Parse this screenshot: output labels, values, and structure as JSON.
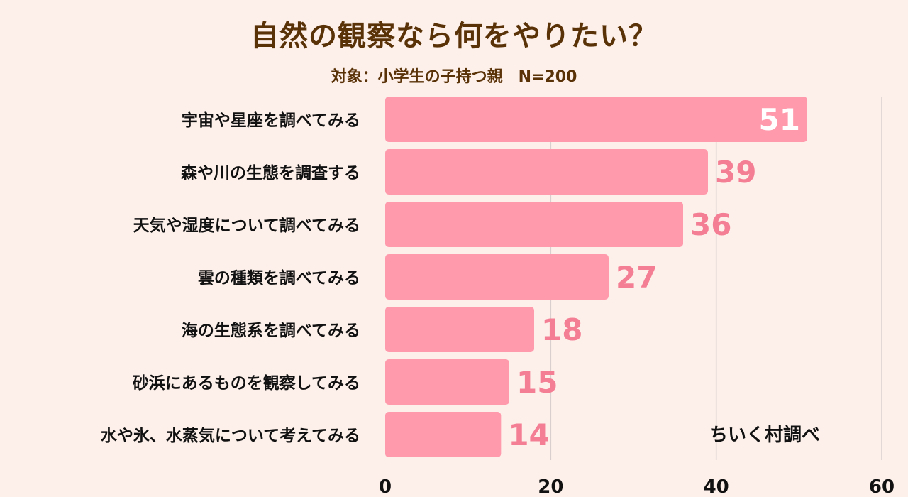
{
  "colors": {
    "background": "#fdf0ea",
    "bar": "#ff9aac",
    "title": "#5a3208",
    "text": "#111111",
    "value_outside": "#f47f95",
    "value_inside": "#ffffff",
    "grid": "#d9cfcf"
  },
  "credit": "ちいく村調べ",
  "chart_data": {
    "type": "bar",
    "orientation": "horizontal",
    "title": "自然の観察なら何をやりたい？",
    "subtitle": "対象：小学生の子持つ親　N=200",
    "categories": [
      "宇宙や星座を調べてみる",
      "森や川の生態を調査する",
      "天気や湿度について調べてみる",
      "雲の種類を調べてみる",
      "海の生態系を調べてみる",
      "砂浜にあるものを観察してみる",
      "水や氷、水蒸気について考えてみる"
    ],
    "values": [
      51,
      39,
      36,
      27,
      18,
      15,
      14
    ],
    "xlim": [
      0,
      60
    ],
    "xticks": [
      0,
      20,
      40,
      60
    ],
    "grid": true,
    "data_labels": true
  }
}
